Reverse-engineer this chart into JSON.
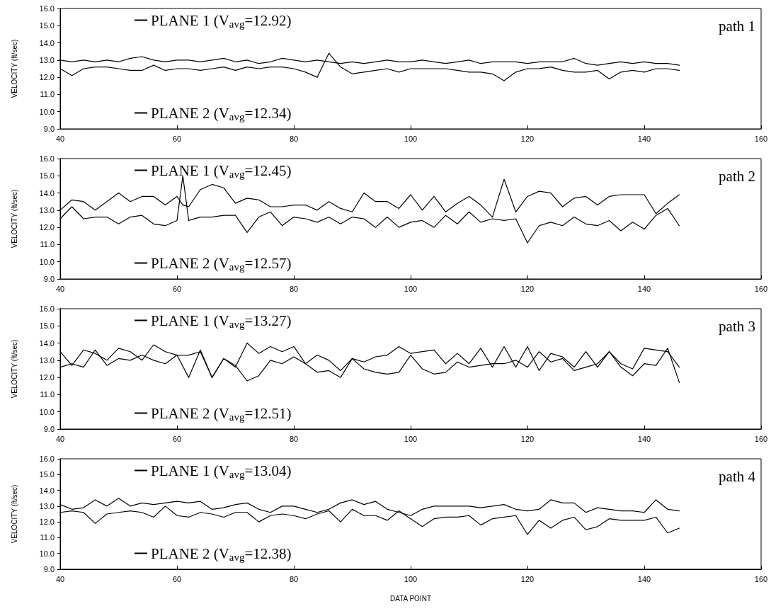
{
  "chart_data": [
    {
      "type": "line",
      "annotations": [
        "path 1"
      ],
      "ylabel": "VELOCITY (ft/sec)",
      "xlim": [
        40,
        160
      ],
      "xticks": [
        40,
        60,
        80,
        100,
        120,
        140,
        160
      ],
      "ylim": [
        9,
        16
      ],
      "yticks": [
        {
          "value": 9,
          "label": "9.0"
        },
        {
          "value": 10,
          "label": "10.0"
        },
        {
          "value": 11,
          "label": "11.0"
        },
        {
          "value": 12,
          "label": "12.0"
        },
        {
          "value": 13,
          "label": "13.0"
        },
        {
          "value": 14,
          "label": "14.0"
        },
        {
          "value": 15,
          "label": "15.0"
        },
        {
          "value": 16,
          "label": "16.0"
        }
      ],
      "grid": false,
      "legend": "left",
      "line_style": "solid",
      "x": [
        40,
        42,
        44,
        46,
        48,
        50,
        52,
        54,
        56,
        58,
        60,
        62,
        64,
        66,
        68,
        70,
        72,
        74,
        76,
        78,
        80,
        82,
        84,
        86,
        88,
        90,
        92,
        94,
        96,
        98,
        100,
        102,
        104,
        106,
        108,
        110,
        112,
        114,
        116,
        118,
        120,
        122,
        124,
        126,
        128,
        130,
        132,
        134,
        136,
        138,
        140,
        142,
        144,
        146
      ],
      "series": [
        {
          "name": "PLANE 1 (V$_{avg}$=12.92)",
          "color": "#000000",
          "values": [
            13.0,
            12.9,
            13.0,
            12.9,
            13.0,
            12.9,
            13.1,
            13.2,
            13.0,
            12.9,
            13.0,
            13.0,
            12.9,
            13.0,
            13.1,
            12.9,
            13.0,
            12.8,
            12.9,
            13.1,
            13.0,
            12.9,
            13.0,
            12.9,
            12.8,
            12.9,
            12.8,
            12.9,
            13.0,
            12.9,
            12.9,
            13.0,
            12.9,
            12.8,
            12.9,
            13.0,
            12.8,
            12.9,
            12.9,
            12.9,
            12.8,
            12.9,
            12.9,
            12.9,
            13.1,
            12.8,
            12.7,
            12.8,
            12.9,
            12.8,
            12.9,
            12.8,
            12.8,
            12.7
          ]
        },
        {
          "name": "PLANE 2 (V$_{avg}$=12.34)",
          "color": "#000000",
          "values": [
            12.5,
            12.1,
            12.5,
            12.6,
            12.6,
            12.5,
            12.4,
            12.4,
            12.7,
            12.4,
            12.5,
            12.5,
            12.4,
            12.5,
            12.6,
            12.4,
            12.6,
            12.5,
            12.6,
            12.6,
            12.5,
            12.3,
            12.0,
            13.4,
            12.6,
            12.2,
            12.3,
            12.4,
            12.5,
            12.3,
            12.5,
            12.5,
            12.5,
            12.5,
            12.4,
            12.3,
            12.3,
            12.2,
            11.8,
            12.3,
            12.5,
            12.5,
            12.6,
            12.4,
            12.3,
            12.3,
            12.4,
            11.9,
            12.3,
            12.4,
            12.3,
            12.5,
            12.5,
            12.4
          ]
        }
      ]
    },
    {
      "type": "line",
      "annotations": [
        "path 2"
      ],
      "ylabel": "VELOCITY (ft/sec)",
      "xlim": [
        40,
        160
      ],
      "xticks": [
        40,
        60,
        80,
        100,
        120,
        140,
        160
      ],
      "ylim": [
        9,
        16
      ],
      "yticks": [
        {
          "value": 9,
          "label": "9.0"
        },
        {
          "value": 10,
          "label": "10.0"
        },
        {
          "value": 11,
          "label": "11.0"
        },
        {
          "value": 12,
          "label": "12.0"
        },
        {
          "value": 13,
          "label": "13.0"
        },
        {
          "value": 14,
          "label": "14.0"
        },
        {
          "value": 15,
          "label": "15.0"
        },
        {
          "value": 16,
          "label": "16.0"
        }
      ],
      "grid": false,
      "legend": "left",
      "line_style": "solid",
      "x": [
        40,
        42,
        44,
        46,
        48,
        50,
        52,
        54,
        56,
        58,
        60,
        61,
        62,
        64,
        66,
        68,
        70,
        72,
        74,
        76,
        78,
        80,
        82,
        84,
        86,
        88,
        90,
        92,
        94,
        96,
        98,
        100,
        102,
        104,
        106,
        108,
        110,
        112,
        114,
        116,
        118,
        120,
        122,
        124,
        126,
        128,
        130,
        132,
        134,
        136,
        138,
        140,
        142,
        144,
        146
      ],
      "series": [
        {
          "name": "PLANE 1 (V$_{avg}$=12.45)",
          "color": "#000000",
          "values": [
            12.5,
            13.2,
            12.5,
            12.6,
            12.6,
            12.2,
            12.6,
            12.7,
            12.2,
            12.1,
            12.4,
            15.0,
            12.4,
            12.6,
            12.6,
            12.7,
            12.7,
            11.7,
            12.6,
            12.9,
            12.1,
            12.6,
            12.5,
            12.3,
            12.6,
            12.2,
            12.6,
            12.5,
            12.0,
            12.6,
            12.0,
            12.3,
            12.4,
            12.0,
            12.7,
            12.2,
            12.9,
            12.3,
            12.5,
            12.4,
            12.5,
            11.1,
            12.1,
            12.3,
            12.1,
            12.6,
            12.2,
            12.1,
            12.4,
            11.8,
            12.3,
            11.9,
            12.7,
            13.1,
            12.1
          ]
        },
        {
          "name": "PLANE 2 (V$_{avg}$=12.57)",
          "color": "#000000",
          "values": [
            13.0,
            13.6,
            13.5,
            13.0,
            13.5,
            14.0,
            13.5,
            13.8,
            13.8,
            13.3,
            13.8,
            13.3,
            13.2,
            14.2,
            14.5,
            14.3,
            13.4,
            13.7,
            13.6,
            13.2,
            13.2,
            13.3,
            13.3,
            13.0,
            13.5,
            13.1,
            12.9,
            14.0,
            13.5,
            13.5,
            13.1,
            13.9,
            13.0,
            13.8,
            12.9,
            13.4,
            13.8,
            13.3,
            12.6,
            14.8,
            12.9,
            13.8,
            14.1,
            14.0,
            13.2,
            13.7,
            13.8,
            13.3,
            13.8,
            13.9,
            13.9,
            13.9,
            12.8,
            13.4,
            13.9
          ]
        }
      ]
    },
    {
      "type": "line",
      "annotations": [
        "path 3"
      ],
      "ylabel": "VELOCITY (ft/sec)",
      "xlim": [
        40,
        160
      ],
      "xticks": [
        40,
        60,
        80,
        100,
        120,
        140,
        160
      ],
      "ylim": [
        9,
        16
      ],
      "yticks": [
        {
          "value": 9,
          "label": "9.0"
        },
        {
          "value": 10,
          "label": "10.0"
        },
        {
          "value": 11,
          "label": "11.0"
        },
        {
          "value": 12,
          "label": "12.0"
        },
        {
          "value": 13,
          "label": "13.0"
        },
        {
          "value": 14,
          "label": "14.0"
        },
        {
          "value": 15,
          "label": "15.0"
        },
        {
          "value": 16,
          "label": "16.0"
        }
      ],
      "grid": false,
      "legend": "left",
      "line_style": "solid",
      "x": [
        40,
        42,
        44,
        46,
        48,
        50,
        52,
        54,
        56,
        58,
        60,
        62,
        64,
        66,
        68,
        70,
        72,
        74,
        76,
        78,
        80,
        82,
        84,
        86,
        88,
        90,
        92,
        94,
        96,
        98,
        100,
        102,
        104,
        106,
        108,
        110,
        112,
        114,
        116,
        118,
        120,
        122,
        124,
        126,
        128,
        130,
        132,
        134,
        136,
        138,
        140,
        142,
        144,
        146
      ],
      "series": [
        {
          "name": "PLANE 1 (V$_{avg}$=13.27)",
          "color": "#000000",
          "values": [
            13.5,
            12.7,
            13.6,
            13.4,
            13.0,
            13.7,
            13.5,
            13.0,
            13.9,
            13.5,
            13.3,
            13.3,
            13.5,
            12.0,
            13.1,
            12.6,
            14.0,
            13.4,
            13.8,
            13.5,
            13.8,
            12.8,
            13.3,
            13.0,
            12.4,
            13.1,
            12.9,
            13.2,
            13.3,
            13.8,
            13.4,
            13.5,
            13.6,
            12.8,
            13.4,
            12.8,
            13.7,
            12.6,
            13.8,
            12.6,
            13.8,
            12.4,
            13.4,
            13.2,
            12.6,
            13.5,
            12.6,
            13.5,
            12.8,
            12.5,
            13.7,
            13.6,
            13.5,
            12.6
          ]
        },
        {
          "name": "PLANE 2 (V$_{avg}$=12.51)",
          "color": "#000000",
          "values": [
            12.6,
            12.8,
            12.6,
            13.6,
            12.7,
            13.1,
            13.0,
            13.3,
            13.0,
            12.8,
            13.3,
            12.0,
            13.6,
            12.0,
            13.1,
            12.7,
            11.8,
            12.1,
            13.0,
            12.8,
            13.2,
            12.8,
            12.3,
            12.4,
            12.0,
            13.1,
            12.5,
            12.3,
            12.2,
            12.3,
            13.3,
            12.5,
            12.2,
            12.3,
            12.9,
            12.6,
            12.7,
            12.8,
            12.8,
            13.0,
            12.6,
            13.5,
            12.9,
            13.1,
            12.4,
            12.6,
            12.8,
            13.5,
            12.6,
            12.1,
            12.8,
            12.7,
            13.7,
            11.7
          ]
        }
      ]
    },
    {
      "type": "line",
      "annotations": [
        "path 4"
      ],
      "xlabel": "DATA POINT",
      "ylabel": "VELOCITY (ft/sec)",
      "xlim": [
        40,
        160
      ],
      "xticks": [
        40,
        60,
        80,
        100,
        120,
        140,
        160
      ],
      "ylim": [
        9,
        16
      ],
      "yticks": [
        {
          "value": 9,
          "label": "9.0"
        },
        {
          "value": 10,
          "label": "10.0"
        },
        {
          "value": 11,
          "label": "11.0"
        },
        {
          "value": 12,
          "label": "12.0"
        },
        {
          "value": 13,
          "label": "13.0"
        },
        {
          "value": 14,
          "label": "14.0"
        },
        {
          "value": 15,
          "label": "15.0"
        },
        {
          "value": 16,
          "label": "16.0"
        }
      ],
      "grid": false,
      "legend": "left",
      "line_style": "solid",
      "x": [
        40,
        42,
        44,
        46,
        48,
        50,
        52,
        54,
        56,
        58,
        60,
        62,
        64,
        66,
        68,
        70,
        72,
        74,
        76,
        78,
        80,
        82,
        84,
        86,
        88,
        90,
        92,
        94,
        96,
        98,
        100,
        102,
        104,
        106,
        108,
        110,
        112,
        114,
        116,
        118,
        120,
        122,
        124,
        126,
        128,
        130,
        132,
        134,
        136,
        138,
        140,
        142,
        144,
        146
      ],
      "series": [
        {
          "name": "PLANE 1 (V$_{avg}$=13.04)",
          "color": "#000000",
          "values": [
            13.1,
            12.8,
            12.9,
            13.4,
            13.0,
            13.5,
            13.0,
            13.2,
            13.1,
            13.2,
            13.3,
            13.2,
            13.3,
            12.8,
            12.9,
            13.1,
            13.2,
            12.8,
            12.6,
            13.0,
            13.0,
            12.8,
            12.6,
            12.8,
            13.2,
            13.4,
            13.1,
            13.3,
            12.8,
            12.6,
            12.4,
            12.8,
            13.0,
            13.0,
            13.0,
            13.0,
            12.9,
            13.0,
            13.1,
            12.8,
            12.7,
            12.8,
            13.4,
            13.2,
            13.2,
            12.6,
            12.9,
            12.8,
            12.7,
            12.7,
            12.6,
            13.4,
            12.8,
            12.7
          ]
        },
        {
          "name": "PLANE 2 (V$_{avg}$=12.38)",
          "color": "#000000",
          "values": [
            12.6,
            12.7,
            12.6,
            11.9,
            12.5,
            12.6,
            12.7,
            12.6,
            12.3,
            13.0,
            12.4,
            12.3,
            12.6,
            12.5,
            12.3,
            12.6,
            12.6,
            12.0,
            12.4,
            12.5,
            12.4,
            12.2,
            12.5,
            12.7,
            12.0,
            12.8,
            12.4,
            12.4,
            12.1,
            12.7,
            12.2,
            11.7,
            12.2,
            12.3,
            12.3,
            12.4,
            11.8,
            12.2,
            12.3,
            12.4,
            11.2,
            12.1,
            11.6,
            12.1,
            12.3,
            11.5,
            11.7,
            12.2,
            12.1,
            12.1,
            12.1,
            12.3,
            11.3,
            11.6
          ]
        }
      ]
    }
  ]
}
